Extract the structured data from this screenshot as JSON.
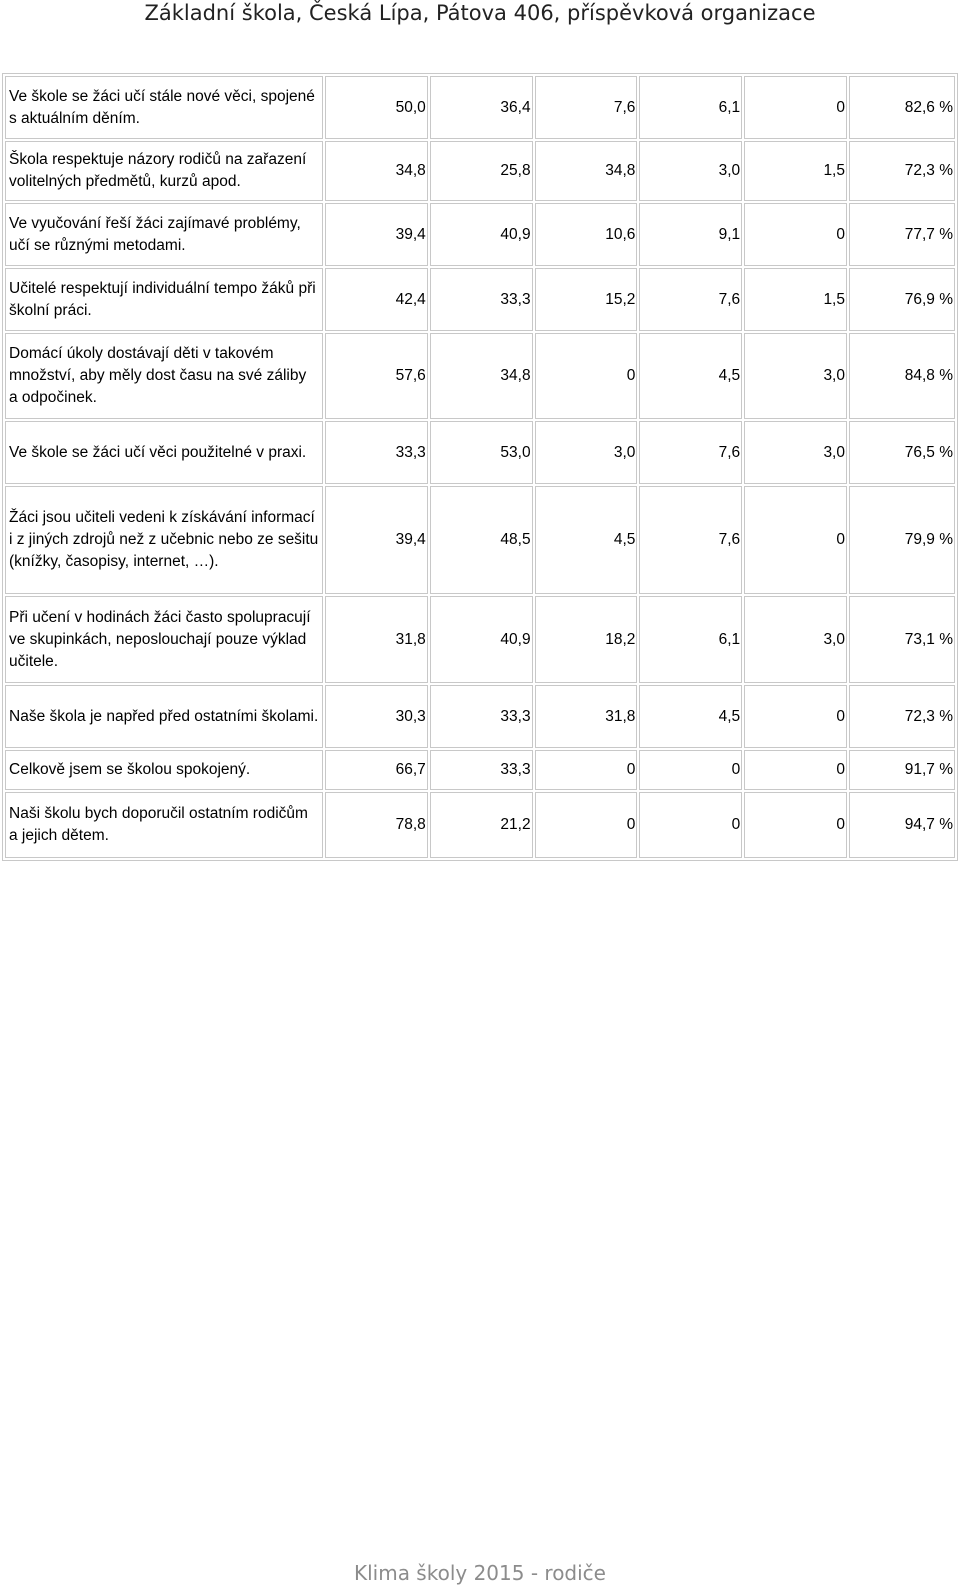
{
  "header": {
    "title": "Základní škola, Česká Lípa, Pátova 406, příspěvková organizace"
  },
  "footer": {
    "text": "Klima školy 2015 - rodiče"
  },
  "rows": [
    {
      "question": "Ve škole se žáci učí stále nové věci, spojené s aktuálním děním.",
      "values": [
        "50,0",
        "36,4",
        "7,6",
        "6,1",
        "0"
      ],
      "total": "82,6 %"
    },
    {
      "question": "Škola respektuje názory rodičů na zařazení volitelných předmětů, kurzů apod.",
      "values": [
        "34,8",
        "25,8",
        "34,8",
        "3,0",
        "1,5"
      ],
      "total": "72,3 %"
    },
    {
      "question": "Ve vyučování řeší žáci zajímavé problémy, učí se různými metodami.",
      "values": [
        "39,4",
        "40,9",
        "10,6",
        "9,1",
        "0"
      ],
      "total": "77,7 %"
    },
    {
      "question": "Učitelé respektují individuální tempo žáků při školní práci.",
      "values": [
        "42,4",
        "33,3",
        "15,2",
        "7,6",
        "1,5"
      ],
      "total": "76,9 %"
    },
    {
      "question": "Domácí úkoly dostávají děti v takovém množství, aby měly dost času na své záliby a odpočinek.",
      "values": [
        "57,6",
        "34,8",
        "0",
        "4,5",
        "3,0"
      ],
      "total": "84,8 %"
    },
    {
      "question": "Ve škole se žáci učí věci použitelné v praxi.",
      "values": [
        "33,3",
        "53,0",
        "3,0",
        "7,6",
        "3,0"
      ],
      "total": "76,5 %"
    },
    {
      "question": "Žáci jsou učiteli vedeni k získávání informací i z jiných zdrojů než z učebnic nebo ze sešitu (knížky, časopisy, internet, …).",
      "values": [
        "39,4",
        "48,5",
        "4,5",
        "7,6",
        "0"
      ],
      "total": "79,9 %"
    },
    {
      "question": "Při učení v hodinách žáci často spolupracují ve skupinkách, neposlouchají pouze výklad učitele.",
      "values": [
        "31,8",
        "40,9",
        "18,2",
        "6,1",
        "3,0"
      ],
      "total": "73,1 %"
    },
    {
      "question": "Naše škola je napřed před ostatními školami.",
      "values": [
        "30,3",
        "33,3",
        "31,8",
        "4,5",
        "0"
      ],
      "total": "72,3 %"
    },
    {
      "question": "Celkově jsem se školou spokojený.",
      "values": [
        "66,7",
        "33,3",
        "0",
        "0",
        "0"
      ],
      "total": "91,7 %"
    },
    {
      "question": "Naši školu bych doporučil ostatním rodičům a jejich dětem.",
      "values": [
        "78,8",
        "21,2",
        "0",
        "0",
        "0"
      ],
      "total": "94,7 %"
    }
  ]
}
